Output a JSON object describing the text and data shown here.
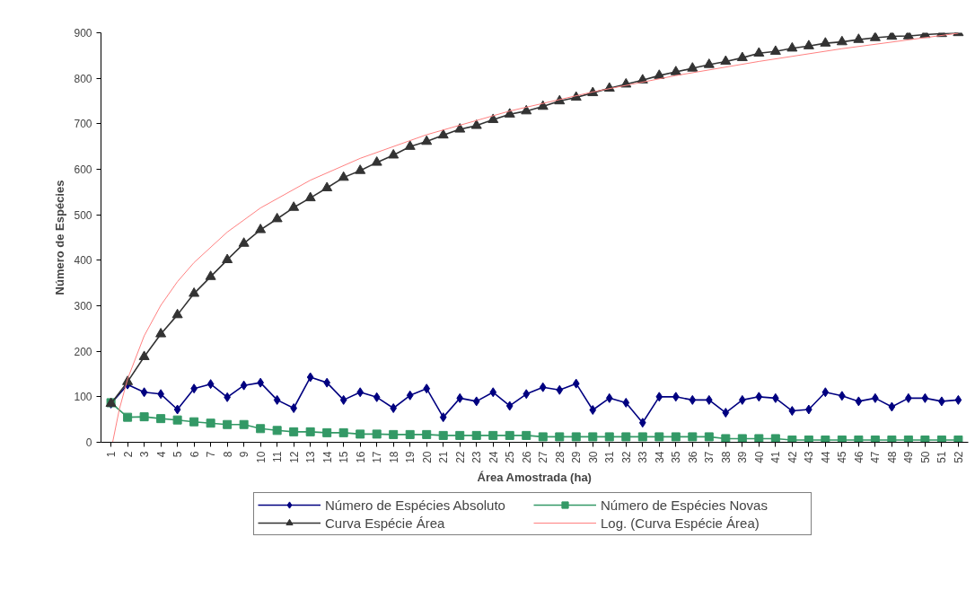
{
  "chart_data": {
    "type": "line",
    "xlabel": "Área Amostrada (ha)",
    "ylabel": "Número de Espécies",
    "x": [
      1,
      2,
      3,
      4,
      5,
      6,
      7,
      8,
      9,
      10,
      11,
      12,
      13,
      14,
      15,
      16,
      17,
      18,
      19,
      20,
      21,
      22,
      23,
      24,
      25,
      26,
      27,
      28,
      29,
      30,
      31,
      32,
      33,
      34,
      35,
      36,
      37,
      38,
      39,
      40,
      41,
      42,
      43,
      44,
      45,
      46,
      47,
      48,
      49,
      50,
      51,
      52
    ],
    "xlim": [
      0.4,
      52.6
    ],
    "xticks": [
      1,
      2,
      3,
      4,
      5,
      6,
      7,
      8,
      9,
      10,
      11,
      12,
      13,
      14,
      15,
      16,
      17,
      18,
      19,
      20,
      21,
      22,
      23,
      24,
      25,
      26,
      27,
      28,
      29,
      30,
      31,
      32,
      33,
      34,
      35,
      36,
      37,
      38,
      39,
      40,
      41,
      42,
      43,
      44,
      45,
      46,
      47,
      48,
      49,
      50,
      51,
      52
    ],
    "ylim": [
      0,
      900
    ],
    "yticks": [
      0,
      100,
      200,
      300,
      400,
      500,
      600,
      700,
      800,
      900
    ],
    "grid": false,
    "legend": "bottom",
    "line_style": "solid",
    "series": [
      {
        "name": "Número de Espécies Absoluto",
        "color": "#000080",
        "marker": "diamond",
        "values": [
          85,
          127,
          110,
          106,
          72,
          118,
          128,
          99,
          125,
          131,
          93,
          75,
          143,
          131,
          93,
          110,
          99,
          75,
          103,
          118,
          55,
          97,
          90,
          110,
          80,
          106,
          121,
          115,
          129,
          71,
          97,
          87,
          43,
          100,
          100,
          93,
          93,
          65,
          93,
          100,
          97,
          69,
          72,
          110,
          102,
          90,
          97,
          78,
          97,
          97,
          90,
          93
        ]
      },
      {
        "name": "Número de Espécies Novas",
        "color": "#339966",
        "marker": "square",
        "values": [
          87,
          55,
          56,
          52,
          49,
          45,
          42,
          39,
          39,
          30,
          26,
          23,
          23,
          21,
          21,
          18,
          18,
          17,
          17,
          17,
          15,
          15,
          15,
          15,
          15,
          15,
          12,
          12,
          12,
          12,
          12,
          12,
          12,
          12,
          12,
          12,
          12,
          8,
          8,
          8,
          8,
          5,
          5,
          5,
          5,
          5,
          5,
          5,
          5,
          5,
          5,
          5
        ]
      },
      {
        "name": "Curva Espécie Área",
        "color": "#333333",
        "marker": "triangle",
        "values": [
          85,
          133,
          188,
          238,
          280,
          327,
          364,
          401,
          437,
          467,
          491,
          516,
          537,
          559,
          582,
          597,
          615,
          631,
          650,
          661,
          675,
          688,
          696,
          709,
          721,
          728,
          738,
          750,
          758,
          768,
          778,
          787,
          796,
          806,
          814,
          822,
          830,
          837,
          845,
          855,
          859,
          866,
          871,
          877,
          880,
          885,
          889,
          892,
          893,
          896,
          898,
          900
        ]
      },
      {
        "name": "Log. (Curva Espécie Área)",
        "color": "#ff8080",
        "marker": "none",
        "x": [
          1.1,
          1.5,
          2,
          3,
          4,
          5,
          6,
          8,
          10,
          13,
          16,
          20,
          25,
          30,
          35,
          40,
          45,
          52
        ],
        "values": [
          0,
          72,
          139,
          234,
          301,
          353,
          395,
          462,
          515,
          576,
          624,
          676,
          728,
          770,
          806,
          837,
          865,
          899
        ]
      }
    ]
  }
}
